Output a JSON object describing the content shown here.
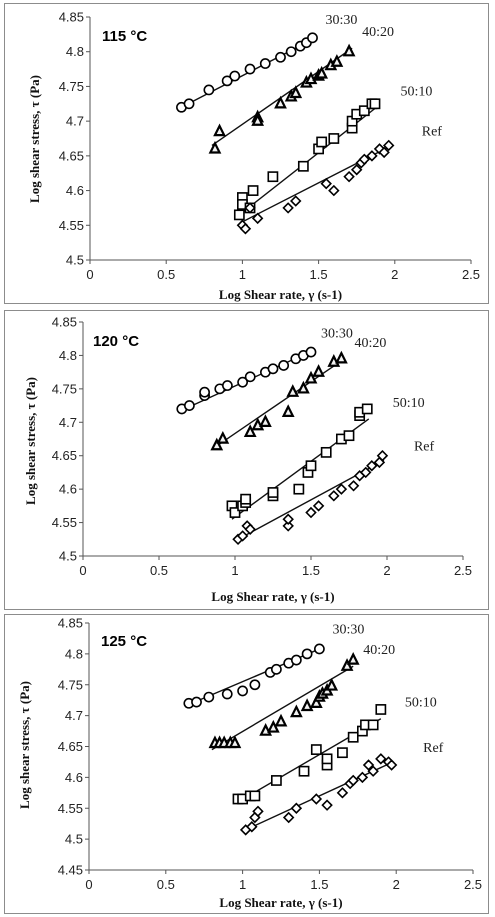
{
  "chart_data": [
    {
      "type": "scatter",
      "title": "115 °C",
      "xlabel": "Log Shear rate,  γ (s-1)",
      "ylabel": "Log shear stress, τ (Pa)",
      "xlim": [
        0,
        2.5
      ],
      "ylim": [
        4.5,
        4.85
      ],
      "xticks": [
        0,
        0.5,
        1,
        1.5,
        2,
        2.5
      ],
      "xticklabels": [
        "0",
        "0.5",
        "1",
        "1.5",
        "2",
        "2.5"
      ],
      "yticks": [
        4.5,
        4.55,
        4.6,
        4.65,
        4.7,
        4.75,
        4.8,
        4.85
      ],
      "yticklabels": [
        "4.5",
        "4.55",
        "4.6",
        "4.65",
        "4.7",
        "4.75",
        "4.8",
        "4.85"
      ],
      "series": [
        {
          "name": "30:30",
          "marker": "circle",
          "x": [
            0.6,
            0.65,
            0.78,
            0.9,
            0.95,
            1.05,
            1.15,
            1.25,
            1.32,
            1.38,
            1.42,
            1.46
          ],
          "y": [
            4.72,
            4.725,
            4.745,
            4.758,
            4.765,
            4.775,
            4.783,
            4.792,
            4.8,
            4.808,
            4.813,
            4.82
          ],
          "fit": [
            [
              0.6,
              4.72
            ],
            [
              1.48,
              4.82
            ]
          ]
        },
        {
          "name": "40:20",
          "marker": "triangle",
          "x": [
            0.82,
            0.85,
            1.1,
            1.1,
            1.25,
            1.32,
            1.35,
            1.42,
            1.45,
            1.5,
            1.52,
            1.58,
            1.62,
            1.7
          ],
          "y": [
            4.66,
            4.685,
            4.705,
            4.7,
            4.725,
            4.735,
            4.74,
            4.755,
            4.76,
            4.765,
            4.768,
            4.78,
            4.785,
            4.8
          ],
          "fit": [
            [
              0.8,
              4.665
            ],
            [
              1.72,
              4.805
            ]
          ]
        },
        {
          "name": "50:10",
          "marker": "square",
          "x": [
            0.98,
            1.0,
            1.0,
            1.05,
            1.07,
            1.2,
            1.4,
            1.5,
            1.52,
            1.6,
            1.72,
            1.72,
            1.75,
            1.8,
            1.85,
            1.87
          ],
          "y": [
            4.565,
            4.59,
            4.58,
            4.575,
            4.6,
            4.62,
            4.635,
            4.66,
            4.67,
            4.675,
            4.69,
            4.7,
            4.71,
            4.715,
            4.725,
            4.725
          ],
          "fit": [
            [
              0.98,
              4.565
            ],
            [
              1.88,
              4.72
            ]
          ]
        },
        {
          "name": "Ref",
          "marker": "diamond",
          "x": [
            1.0,
            1.02,
            1.05,
            1.1,
            1.3,
            1.35,
            1.55,
            1.6,
            1.7,
            1.75,
            1.78,
            1.8,
            1.85,
            1.9,
            1.93,
            1.96
          ],
          "y": [
            4.55,
            4.545,
            4.575,
            4.56,
            4.575,
            4.585,
            4.61,
            4.6,
            4.62,
            4.63,
            4.64,
            4.645,
            4.65,
            4.66,
            4.655,
            4.665
          ],
          "fit": [
            [
              1.0,
              4.555
            ],
            [
              1.98,
              4.665
            ]
          ]
        }
      ]
    },
    {
      "type": "scatter",
      "title": "120 °C",
      "xlabel": "Log Shear rate,  γ (s-1)",
      "ylabel": "Log shear stress, τ (Pa)",
      "xlim": [
        0,
        2.5
      ],
      "ylim": [
        4.5,
        4.85
      ],
      "xticks": [
        0,
        0.5,
        1,
        1.5,
        2,
        2.5
      ],
      "xticklabels": [
        "0",
        "0.5",
        "1",
        "1.5",
        "2",
        "2.5"
      ],
      "yticks": [
        4.5,
        4.55,
        4.6,
        4.65,
        4.7,
        4.75,
        4.8,
        4.85
      ],
      "yticklabels": [
        "4.5",
        "4.55",
        "4.6",
        "4.65",
        "4.7",
        "4.75",
        "4.8",
        "4.85"
      ],
      "series": [
        {
          "name": "30:30",
          "marker": "circle",
          "x": [
            0.65,
            0.7,
            0.8,
            0.8,
            0.9,
            0.95,
            1.05,
            1.1,
            1.2,
            1.25,
            1.32,
            1.4,
            1.45,
            1.5
          ],
          "y": [
            4.72,
            4.725,
            4.74,
            4.745,
            4.75,
            4.755,
            4.76,
            4.768,
            4.775,
            4.78,
            4.785,
            4.795,
            4.8,
            4.805
          ],
          "fit": [
            [
              0.65,
              4.718
            ],
            [
              1.5,
              4.806
            ]
          ]
        },
        {
          "name": "40:20",
          "marker": "triangle",
          "x": [
            0.88,
            0.92,
            1.1,
            1.15,
            1.2,
            1.35,
            1.38,
            1.45,
            1.5,
            1.55,
            1.65,
            1.7
          ],
          "y": [
            4.665,
            4.675,
            4.685,
            4.695,
            4.7,
            4.715,
            4.745,
            4.75,
            4.765,
            4.775,
            4.79,
            4.795
          ],
          "fit": [
            [
              0.85,
              4.66
            ],
            [
              1.72,
              4.795
            ]
          ]
        },
        {
          "name": "50:10",
          "marker": "square",
          "x": [
            0.98,
            1.0,
            1.05,
            1.07,
            1.07,
            1.25,
            1.25,
            1.42,
            1.48,
            1.5,
            1.6,
            1.7,
            1.75,
            1.82,
            1.82,
            1.87
          ],
          "y": [
            4.575,
            4.565,
            4.575,
            4.58,
            4.585,
            4.59,
            4.595,
            4.6,
            4.625,
            4.635,
            4.655,
            4.675,
            4.68,
            4.71,
            4.715,
            4.72
          ],
          "fit": [
            [
              0.98,
              4.555
            ],
            [
              1.88,
              4.705
            ]
          ]
        },
        {
          "name": "Ref",
          "marker": "diamond",
          "x": [
            1.02,
            1.05,
            1.08,
            1.1,
            1.35,
            1.35,
            1.5,
            1.55,
            1.65,
            1.7,
            1.78,
            1.82,
            1.86,
            1.9,
            1.95,
            1.97
          ],
          "y": [
            4.525,
            4.53,
            4.545,
            4.54,
            4.545,
            4.555,
            4.565,
            4.575,
            4.59,
            4.6,
            4.605,
            4.62,
            4.625,
            4.635,
            4.64,
            4.65
          ],
          "fit": [
            [
              1.02,
              4.525
            ],
            [
              1.98,
              4.643
            ]
          ]
        }
      ]
    },
    {
      "type": "scatter",
      "title": "125 °C",
      "xlabel": "Log Shear rate,  γ (s-1)",
      "ylabel": "Log shear stress, τ (Pa)",
      "xlim": [
        0,
        2.5
      ],
      "ylim": [
        4.45,
        4.85
      ],
      "xticks": [
        0,
        0.5,
        1,
        1.5,
        2,
        2.5
      ],
      "xticklabels": [
        "0",
        "0.5",
        "1",
        "1.5",
        "2",
        "2.5"
      ],
      "yticks": [
        4.45,
        4.5,
        4.55,
        4.6,
        4.65,
        4.7,
        4.75,
        4.8,
        4.85
      ],
      "yticklabels": [
        "4.45",
        "4.5",
        "4.55",
        "4.6",
        "4.65",
        "4.7",
        "4.75",
        "4.8",
        "4.85"
      ],
      "series": [
        {
          "name": "30:30",
          "marker": "circle",
          "x": [
            0.65,
            0.7,
            0.78,
            0.9,
            1.0,
            1.08,
            1.18,
            1.22,
            1.3,
            1.35,
            1.42,
            1.5
          ],
          "y": [
            4.72,
            4.722,
            4.73,
            4.735,
            4.74,
            4.75,
            4.77,
            4.775,
            4.785,
            4.79,
            4.8,
            4.808
          ],
          "fit": [
            [
              0.65,
              4.718
            ],
            [
              1.52,
              4.81
            ]
          ]
        },
        {
          "name": "40:20",
          "marker": "triangle",
          "x": [
            0.82,
            0.85,
            0.88,
            0.92,
            0.95,
            1.15,
            1.2,
            1.25,
            1.35,
            1.42,
            1.48,
            1.5,
            1.52,
            1.55,
            1.58,
            1.68,
            1.72
          ],
          "y": [
            4.655,
            4.655,
            4.655,
            4.655,
            4.655,
            4.675,
            4.68,
            4.69,
            4.705,
            4.715,
            4.72,
            4.73,
            4.735,
            4.74,
            4.748,
            4.78,
            4.79
          ],
          "fit": [
            [
              0.8,
              4.645
            ],
            [
              1.72,
              4.78
            ]
          ]
        },
        {
          "name": "50:10",
          "marker": "square",
          "x": [
            0.97,
            1.0,
            1.05,
            1.08,
            1.22,
            1.4,
            1.48,
            1.55,
            1.55,
            1.65,
            1.72,
            1.78,
            1.8,
            1.85,
            1.9
          ],
          "y": [
            4.565,
            4.565,
            4.57,
            4.57,
            4.595,
            4.61,
            4.645,
            4.62,
            4.63,
            4.64,
            4.665,
            4.675,
            4.685,
            4.685,
            4.71
          ],
          "fit": [
            [
              0.97,
              4.56
            ],
            [
              1.9,
              4.695
            ]
          ]
        },
        {
          "name": "Ref",
          "marker": "diamond",
          "x": [
            1.02,
            1.06,
            1.08,
            1.1,
            1.3,
            1.35,
            1.48,
            1.55,
            1.65,
            1.7,
            1.72,
            1.78,
            1.82,
            1.85,
            1.9,
            1.95,
            1.97
          ],
          "y": [
            4.515,
            4.52,
            4.535,
            4.545,
            4.535,
            4.55,
            4.565,
            4.555,
            4.575,
            4.59,
            4.595,
            4.6,
            4.62,
            4.61,
            4.63,
            4.625,
            4.62
          ],
          "fit": [
            [
              1.02,
              4.515
            ],
            [
              1.98,
              4.625
            ]
          ]
        }
      ]
    }
  ]
}
